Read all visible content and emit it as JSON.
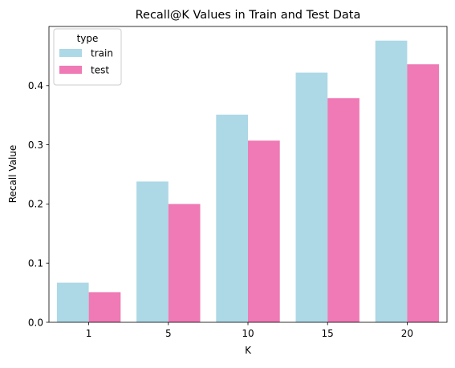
{
  "chart_data": {
    "type": "bar",
    "title": "Recall@K Values in Train and Test Data",
    "xlabel": "K",
    "ylabel": "Recall Value",
    "categories": [
      "1",
      "5",
      "10",
      "15",
      "20"
    ],
    "series": [
      {
        "name": "train",
        "color": "#add8e6",
        "values": [
          0.067,
          0.238,
          0.351,
          0.422,
          0.476
        ]
      },
      {
        "name": "test",
        "color": "#ef7ab5",
        "values": [
          0.051,
          0.2,
          0.307,
          0.379,
          0.436
        ]
      }
    ],
    "ylim": [
      0,
      0.5
    ],
    "yticks": [
      "0.0",
      "0.1",
      "0.2",
      "0.3",
      "0.4"
    ],
    "legend": {
      "title": "type",
      "placement": "top-left"
    },
    "grid": false
  }
}
